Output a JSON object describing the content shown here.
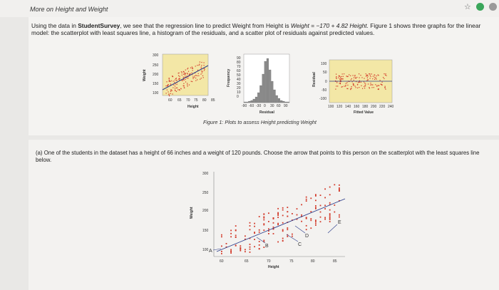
{
  "header": {
    "title": "More on Height and Weight"
  },
  "intro": {
    "part1": "Using the data in ",
    "dataset": "StudentSurvey",
    "part2": ", we see that the regression line to predict Weight from Height is ",
    "equation": "Weight = −170 + 4.82 Height.",
    "part3": " Figure 1 shows three graphs for the linear model: the scatterplot with least squares line, a histogram of the residuals, and a scatter plot of residuals against predicted values."
  },
  "figure": {
    "caption": "Figure 1: Plots to assess Height predicting Weight",
    "scatter": {
      "ylabel": "Weight",
      "xlabel": "Height",
      "yticks": [
        "300",
        "250",
        "200",
        "150",
        "100"
      ],
      "xticks": [
        "60",
        "65",
        "70",
        "75",
        "80",
        "85"
      ]
    },
    "histogram": {
      "ylabel": "Frequency",
      "xlabel": "Residual",
      "yticks": [
        "90",
        "80",
        "70",
        "60",
        "50",
        "40",
        "30",
        "20",
        "10",
        "0"
      ],
      "xticks": [
        "-90",
        "-60",
        "-30",
        "0",
        "30",
        "60",
        "90"
      ]
    },
    "residplot": {
      "ylabel": "Residual",
      "xlabel": "Fitted Value",
      "yticks": [
        "100",
        "50",
        "0",
        "-50",
        "-100"
      ],
      "xticks": [
        "100",
        "120",
        "140",
        "160",
        "180",
        "200",
        "220",
        "240"
      ]
    }
  },
  "question": {
    "text": "(a) One of the students in the dataset has a height of 66 inches and a weight of 120 pounds. Choose the arrow that points to this person on the scatterplot with the least squares line below.",
    "plot": {
      "ylabel": "Weight",
      "xlabel": "Height",
      "yticks": [
        "300",
        "250",
        "200",
        "150",
        "100"
      ],
      "xticks": [
        "60",
        "65",
        "70",
        "75",
        "80",
        "85"
      ],
      "arrows": [
        "A",
        "B",
        "C",
        "D",
        "E"
      ]
    }
  },
  "colors": {
    "plot_bg": "#f3e7a6",
    "points": "#d33a2a",
    "line": "#2b3c8a"
  }
}
